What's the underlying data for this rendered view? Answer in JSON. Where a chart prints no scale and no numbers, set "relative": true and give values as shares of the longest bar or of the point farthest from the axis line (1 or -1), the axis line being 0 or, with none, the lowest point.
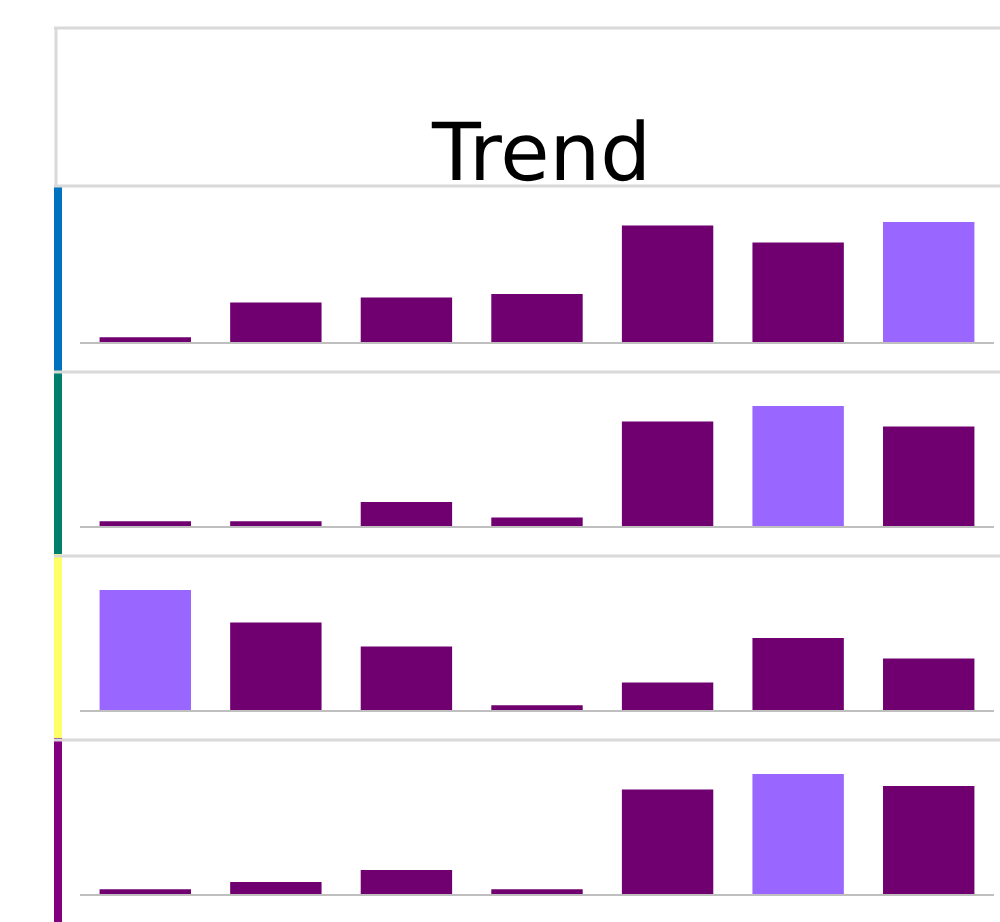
{
  "chart_data": [
    {
      "type": "bar",
      "title": "Trend",
      "relative": true,
      "categories": [
        null,
        null,
        null,
        null,
        null,
        null,
        null
      ],
      "values": [
        0.04,
        0.33,
        0.37,
        0.4,
        0.97,
        0.83,
        1
      ],
      "colors": [
        "#700070",
        "#700070",
        "#700070",
        "#700070",
        "#700070",
        "#700070",
        "#9966ff"
      ]
    },
    {
      "type": "bar",
      "relative": true,
      "categories": [
        null,
        null,
        null,
        null,
        null,
        null,
        null
      ],
      "values": [
        0.04,
        0.04,
        0.2,
        0.07,
        0.87,
        1,
        0.83
      ],
      "colors": [
        "#700070",
        "#700070",
        "#700070",
        "#700070",
        "#700070",
        "#9966ff",
        "#700070"
      ]
    },
    {
      "type": "bar",
      "relative": true,
      "categories": [
        null,
        null,
        null,
        null,
        null,
        null,
        null
      ],
      "values": [
        1,
        0.73,
        0.53,
        0.04,
        0.23,
        0.6,
        0.43
      ],
      "colors": [
        "#9966ff",
        "#700070",
        "#700070",
        "#700070",
        "#700070",
        "#700070",
        "#700070"
      ]
    },
    {
      "type": "bar",
      "relative": true,
      "categories": [
        null,
        null,
        null,
        null,
        null,
        null,
        null
      ],
      "values": [
        0.04,
        0.1,
        0.2,
        0.04,
        0.87,
        1,
        0.9
      ],
      "colors": [
        "#700070",
        "#700070",
        "#700070",
        "#700070",
        "#700070",
        "#9966ff",
        "#700070"
      ]
    }
  ]
}
